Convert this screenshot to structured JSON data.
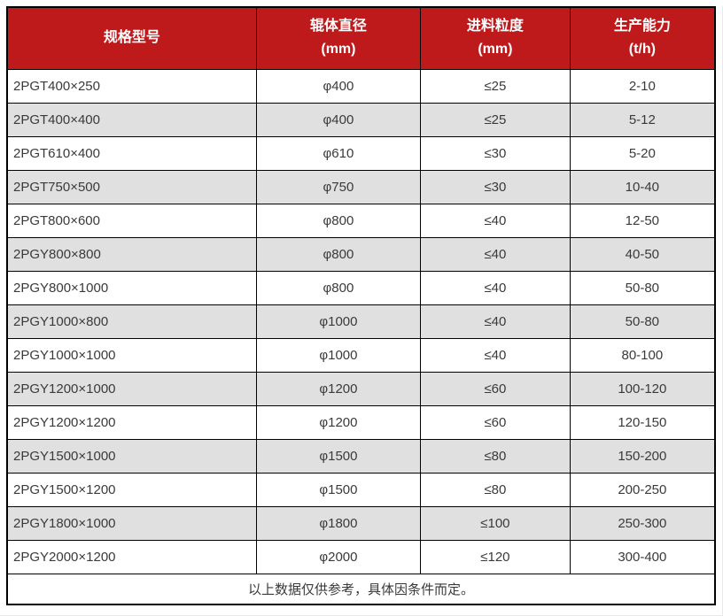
{
  "colors": {
    "header_bg": "#BE1A1C",
    "header_text": "#FFFFFF",
    "row_alt_bg": "#E0E0E0",
    "row_bg": "#FFFFFF",
    "border": "#000000",
    "body_text": "#3A3A3A"
  },
  "chart_data": {
    "type": "table",
    "columns": [
      {
        "label": "规格型号",
        "unit": ""
      },
      {
        "label": "辊体直径",
        "unit": "(mm)"
      },
      {
        "label": "进料粒度",
        "unit": "(mm)"
      },
      {
        "label": "生产能力",
        "unit": "(t/h)"
      }
    ],
    "rows": [
      {
        "model": "2PGT400×250",
        "roller_diameter": "φ400",
        "feed_size": "≤25",
        "capacity": "2-10"
      },
      {
        "model": "2PGT400×400",
        "roller_diameter": "φ400",
        "feed_size": "≤25",
        "capacity": "5-12"
      },
      {
        "model": "2PGT610×400",
        "roller_diameter": "φ610",
        "feed_size": "≤30",
        "capacity": "5-20"
      },
      {
        "model": "2PGT750×500",
        "roller_diameter": "φ750",
        "feed_size": "≤30",
        "capacity": "10-40"
      },
      {
        "model": "2PGT800×600",
        "roller_diameter": "φ800",
        "feed_size": "≤40",
        "capacity": "12-50"
      },
      {
        "model": "2PGY800×800",
        "roller_diameter": "φ800",
        "feed_size": "≤40",
        "capacity": "40-50"
      },
      {
        "model": "2PGY800×1000",
        "roller_diameter": "φ800",
        "feed_size": "≤40",
        "capacity": "50-80"
      },
      {
        "model": "2PGY1000×800",
        "roller_diameter": "φ1000",
        "feed_size": "≤40",
        "capacity": "50-80"
      },
      {
        "model": "2PGY1000×1000",
        "roller_diameter": "φ1000",
        "feed_size": "≤40",
        "capacity": "80-100"
      },
      {
        "model": "2PGY1200×1000",
        "roller_diameter": "φ1200",
        "feed_size": "≤60",
        "capacity": "100-120"
      },
      {
        "model": "2PGY1200×1200",
        "roller_diameter": "φ1200",
        "feed_size": "≤60",
        "capacity": "120-150"
      },
      {
        "model": "2PGY1500×1000",
        "roller_diameter": "φ1500",
        "feed_size": "≤80",
        "capacity": "150-200"
      },
      {
        "model": "2PGY1500×1200",
        "roller_diameter": "φ1500",
        "feed_size": "≤80",
        "capacity": "200-250"
      },
      {
        "model": "2PGY1800×1000",
        "roller_diameter": "φ1800",
        "feed_size": "≤100",
        "capacity": "250-300"
      },
      {
        "model": "2PGY2000×1200",
        "roller_diameter": "φ2000",
        "feed_size": "≤120",
        "capacity": "300-400"
      }
    ],
    "footnote": "以上数据仅供参考，具体因条件而定。"
  }
}
